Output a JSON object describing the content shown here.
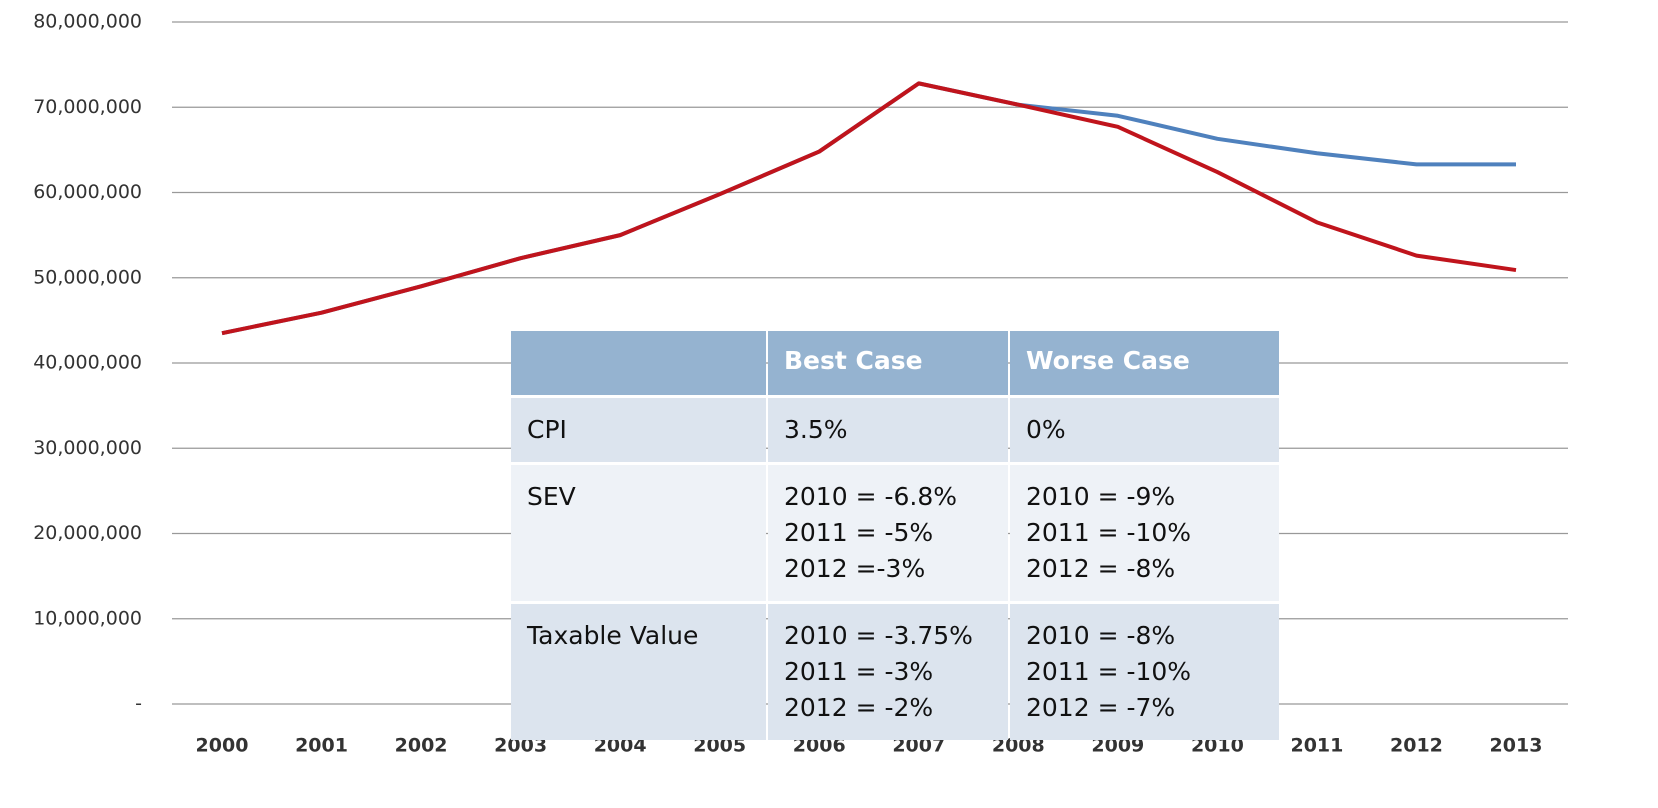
{
  "chart_data": {
    "type": "line",
    "categories": [
      "2000",
      "2001",
      "2002",
      "2003",
      "2004",
      "2005",
      "2006",
      "2007",
      "2008",
      "2009",
      "2010",
      "2011",
      "2012",
      "2013"
    ],
    "series": [
      {
        "color": "#4f81bd",
        "values": [
          43500000,
          45900000,
          49000000,
          52300000,
          55000000,
          59800000,
          64800000,
          72800000,
          70300000,
          69000000,
          66300000,
          64600000,
          63300000,
          63300000
        ]
      },
      {
        "color": "#c0141c",
        "values": [
          43500000,
          45900000,
          49000000,
          52300000,
          55000000,
          59800000,
          64800000,
          72800000,
          70300000,
          67700000,
          62400000,
          56500000,
          52600000,
          50900000
        ]
      }
    ],
    "ylim": [
      0,
      80000000
    ],
    "yticks": [
      {
        "value": 0,
        "label": "-"
      },
      {
        "value": 10000000,
        "label": "10,000,000"
      },
      {
        "value": 20000000,
        "label": "20,000,000"
      },
      {
        "value": 30000000,
        "label": "30,000,000"
      },
      {
        "value": 40000000,
        "label": "40,000,000"
      },
      {
        "value": 50000000,
        "label": "50,000,000"
      },
      {
        "value": 60000000,
        "label": "60,000,000"
      },
      {
        "value": 70000000,
        "label": "70,000,000"
      },
      {
        "value": 80000000,
        "label": "80,000,000"
      }
    ],
    "grid": true
  },
  "table": {
    "columns": [
      "Best Case",
      "Worse Case"
    ],
    "rows": [
      {
        "label": "CPI",
        "cells": [
          [
            "3.5%"
          ],
          [
            "0%"
          ]
        ]
      },
      {
        "label": "SEV",
        "cells": [
          [
            "2010 = -6.8%",
            "2011 = -5%",
            "2012 =-3%"
          ],
          [
            "2010 = -9%",
            "2011 = -10%",
            "2012 = -8%"
          ]
        ]
      },
      {
        "label": "Taxable Value",
        "cells": [
          [
            "2010 = -3.75%",
            "2011 = -3%",
            "2012 = -2%"
          ],
          [
            "2010 = -8%",
            "2011 = -10%",
            "2012 = -7%"
          ]
        ]
      }
    ]
  }
}
